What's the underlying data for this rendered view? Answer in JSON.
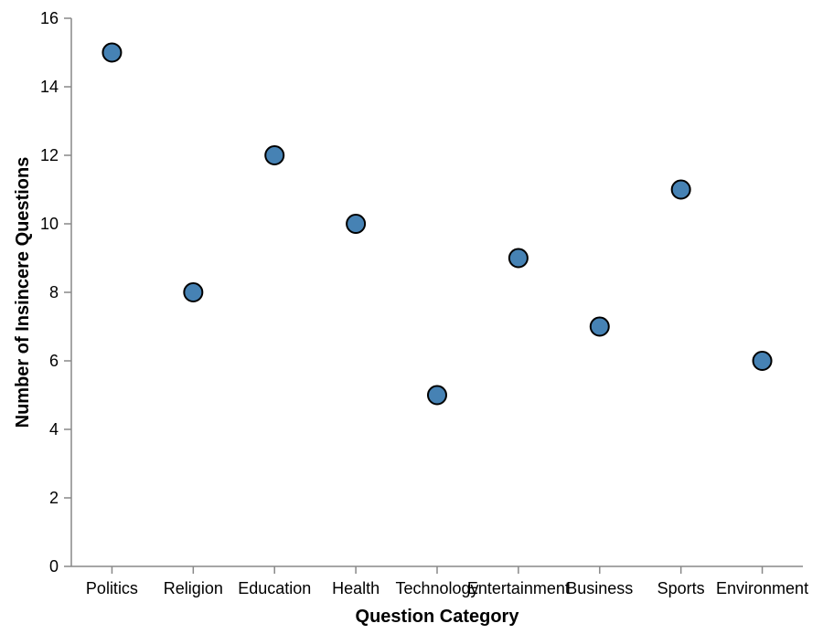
{
  "chart_data": {
    "type": "scatter",
    "categories": [
      "Politics",
      "Religion",
      "Education",
      "Health",
      "Technology",
      "Entertainment",
      "Business",
      "Sports",
      "Environment"
    ],
    "values": [
      15,
      8,
      12,
      10,
      5,
      9,
      7,
      11,
      6
    ],
    "xlabel": "Question Category",
    "ylabel": "Number of Insincere Questions",
    "ylim": [
      0,
      16
    ],
    "yticks": [
      0,
      2,
      4,
      6,
      8,
      10,
      12,
      14,
      16
    ],
    "grid": false,
    "point_color": "#4682b4"
  }
}
